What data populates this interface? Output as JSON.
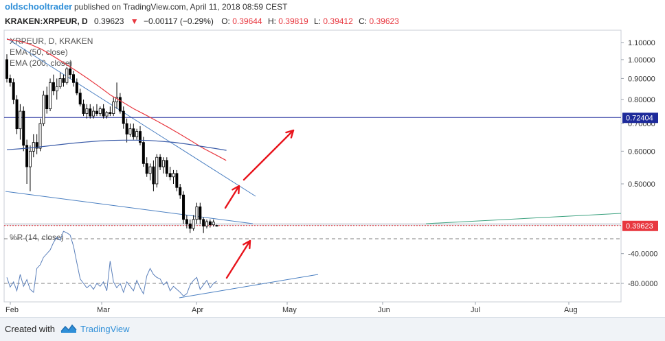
{
  "header": {
    "author": "oldschooltrader",
    "published_text": "published on TradingView.com, April 11, 2018 08:59 CEST",
    "symbol": "KRAKEN:XRPEUR, D",
    "last": "0.39623",
    "change": "−0.00117 (−0.29%)",
    "o_label": "O:",
    "o_value": "0.39644",
    "h_label": "H:",
    "h_value": "0.39819",
    "l_label": "L:",
    "l_value": "0.39412",
    "c_label": "C:",
    "c_value": "0.39623"
  },
  "legend": {
    "symbol": "XRPEUR, D, KRAKEN",
    "ema50": "EMA (50, close)",
    "ema200": "EMA (200, close)",
    "wr": "%R (14, close)"
  },
  "price_tags": {
    "horizontal_level": "0.72404",
    "last_price": "0.39623"
  },
  "footer": {
    "created_with": "Created with",
    "brand": "TradingView"
  },
  "colors": {
    "up": "#ffffff",
    "down": "#000000",
    "ema50": "#e8373f",
    "ema200": "#3a5ba8",
    "trendline": "#4a7fc1",
    "horizontal": "#1d2a9a",
    "last_price": "#e8373f",
    "arrow": "#e8141c",
    "green_line": "#3aa17e",
    "wr_line": "#5a7fba",
    "brand": "#2f8fd8"
  },
  "chart_data": [
    {
      "type": "candlestick",
      "symbol": "XRPEUR",
      "timeframe": "D",
      "exchange": "KRAKEN",
      "xaxis": {
        "ticks": [
          "Feb",
          "Mar",
          "Apr",
          "May",
          "Jun",
          "Jul",
          "Aug"
        ]
      },
      "yaxis": {
        "scale": "log",
        "ticks": [
          "1.10000",
          "1.00000",
          "0.90000",
          "0.80000",
          "0.70000",
          "0.60000",
          "0.50000"
        ],
        "range": [
          0.36,
          1.2
        ]
      },
      "ohlc": [
        [
          1.0,
          1.03,
          0.88,
          0.9
        ],
        [
          0.9,
          0.92,
          0.86,
          0.88
        ],
        [
          0.88,
          0.9,
          0.78,
          0.8
        ],
        [
          0.8,
          0.82,
          0.66,
          0.68
        ],
        [
          0.68,
          0.78,
          0.64,
          0.75
        ],
        [
          0.75,
          0.77,
          0.6,
          0.62
        ],
        [
          0.62,
          0.64,
          0.5,
          0.55
        ],
        [
          0.55,
          0.62,
          0.48,
          0.6
        ],
        [
          0.6,
          0.66,
          0.58,
          0.63
        ],
        [
          0.63,
          0.66,
          0.59,
          0.61
        ],
        [
          0.61,
          0.72,
          0.6,
          0.7
        ],
        [
          0.7,
          0.84,
          0.69,
          0.82
        ],
        [
          0.82,
          0.86,
          0.74,
          0.76
        ],
        [
          0.76,
          0.9,
          0.75,
          0.88
        ],
        [
          0.88,
          0.92,
          0.82,
          0.84
        ],
        [
          0.84,
          0.9,
          0.8,
          0.86
        ],
        [
          0.86,
          0.93,
          0.85,
          0.9
        ],
        [
          0.9,
          0.92,
          0.86,
          0.88
        ],
        [
          0.88,
          0.96,
          0.87,
          0.95
        ],
        [
          0.95,
          0.99,
          0.9,
          0.92
        ],
        [
          0.92,
          0.94,
          0.86,
          0.88
        ],
        [
          0.88,
          0.9,
          0.82,
          0.83
        ],
        [
          0.83,
          0.85,
          0.77,
          0.78
        ],
        [
          0.78,
          0.8,
          0.73,
          0.74
        ],
        [
          0.74,
          0.78,
          0.72,
          0.76
        ],
        [
          0.76,
          0.78,
          0.72,
          0.73
        ],
        [
          0.73,
          0.77,
          0.72,
          0.75
        ],
        [
          0.75,
          0.78,
          0.73,
          0.74
        ],
        [
          0.74,
          0.77,
          0.73,
          0.76
        ],
        [
          0.76,
          0.78,
          0.72,
          0.73
        ],
        [
          0.73,
          0.75,
          0.72,
          0.745
        ],
        [
          0.745,
          0.77,
          0.73,
          0.74
        ],
        [
          0.74,
          0.81,
          0.73,
          0.79
        ],
        [
          0.79,
          0.88,
          0.76,
          0.81
        ],
        [
          0.81,
          0.83,
          0.74,
          0.75
        ],
        [
          0.75,
          0.77,
          0.68,
          0.7
        ],
        [
          0.7,
          0.72,
          0.63,
          0.66
        ],
        [
          0.66,
          0.7,
          0.65,
          0.68
        ],
        [
          0.68,
          0.7,
          0.64,
          0.65
        ],
        [
          0.65,
          0.68,
          0.64,
          0.67
        ],
        [
          0.67,
          0.69,
          0.62,
          0.63
        ],
        [
          0.63,
          0.65,
          0.55,
          0.56
        ],
        [
          0.56,
          0.58,
          0.52,
          0.53
        ],
        [
          0.53,
          0.56,
          0.51,
          0.55
        ],
        [
          0.55,
          0.57,
          0.48,
          0.5
        ],
        [
          0.5,
          0.59,
          0.49,
          0.58
        ],
        [
          0.58,
          0.59,
          0.54,
          0.55
        ],
        [
          0.55,
          0.58,
          0.53,
          0.57
        ],
        [
          0.57,
          0.58,
          0.52,
          0.53
        ],
        [
          0.53,
          0.55,
          0.51,
          0.52
        ],
        [
          0.52,
          0.54,
          0.5,
          0.53
        ],
        [
          0.53,
          0.54,
          0.48,
          0.49
        ],
        [
          0.49,
          0.5,
          0.46,
          0.47
        ],
        [
          0.47,
          0.48,
          0.4,
          0.41
        ],
        [
          0.41,
          0.42,
          0.39,
          0.4
        ],
        [
          0.4,
          0.41,
          0.38,
          0.39
        ],
        [
          0.39,
          0.42,
          0.385,
          0.41
        ],
        [
          0.41,
          0.45,
          0.4,
          0.44
        ],
        [
          0.44,
          0.45,
          0.4,
          0.41
        ],
        [
          0.41,
          0.415,
          0.38,
          0.395
        ],
        [
          0.395,
          0.41,
          0.39,
          0.405
        ],
        [
          0.405,
          0.41,
          0.392,
          0.398
        ],
        [
          0.398,
          0.41,
          0.394,
          0.404
        ],
        [
          0.39644,
          0.39819,
          0.39412,
          0.39623
        ]
      ],
      "ema_50": [
        1.12,
        1.11,
        1.09,
        1.06,
        1.02,
        0.98,
        0.94,
        0.9,
        0.86,
        0.82,
        0.79,
        0.76,
        0.735,
        0.71,
        0.685,
        0.66,
        0.635,
        0.61,
        0.59,
        0.57
      ],
      "ema_200": [
        0.605,
        0.608,
        0.612,
        0.617,
        0.622,
        0.627,
        0.631,
        0.635,
        0.637,
        0.638,
        0.638,
        0.637,
        0.634,
        0.63,
        0.624,
        0.617,
        0.61,
        0.603
      ],
      "horizontal_level": 0.72404,
      "last_price": 0.39623
    },
    {
      "type": "line",
      "name": "%R (14, close)",
      "yaxis": {
        "ticks": [
          "-40.0000",
          "-80.0000"
        ],
        "range": [
          -100,
          0
        ],
        "levels": [
          -20,
          -80
        ]
      },
      "values": [
        -72,
        -85,
        -78,
        -90,
        -68,
        -84,
        -75,
        -88,
        -92,
        -60,
        -55,
        -45,
        -40,
        -35,
        -25,
        -18,
        -22,
        -10,
        -12,
        -15,
        -30,
        -52,
        -74,
        -80,
        -86,
        -82,
        -88,
        -80,
        -84,
        -78,
        -90,
        -50,
        -78,
        -86,
        -80,
        -92,
        -78,
        -84,
        -90,
        -76,
        -86,
        -94,
        -70,
        -60,
        -68,
        -72,
        -74,
        -82,
        -78,
        -90,
        -84,
        -88,
        -92,
        -97,
        -94,
        -82,
        -76,
        -72,
        -88,
        -82,
        -76,
        -86,
        -80,
        -77
      ]
    }
  ]
}
